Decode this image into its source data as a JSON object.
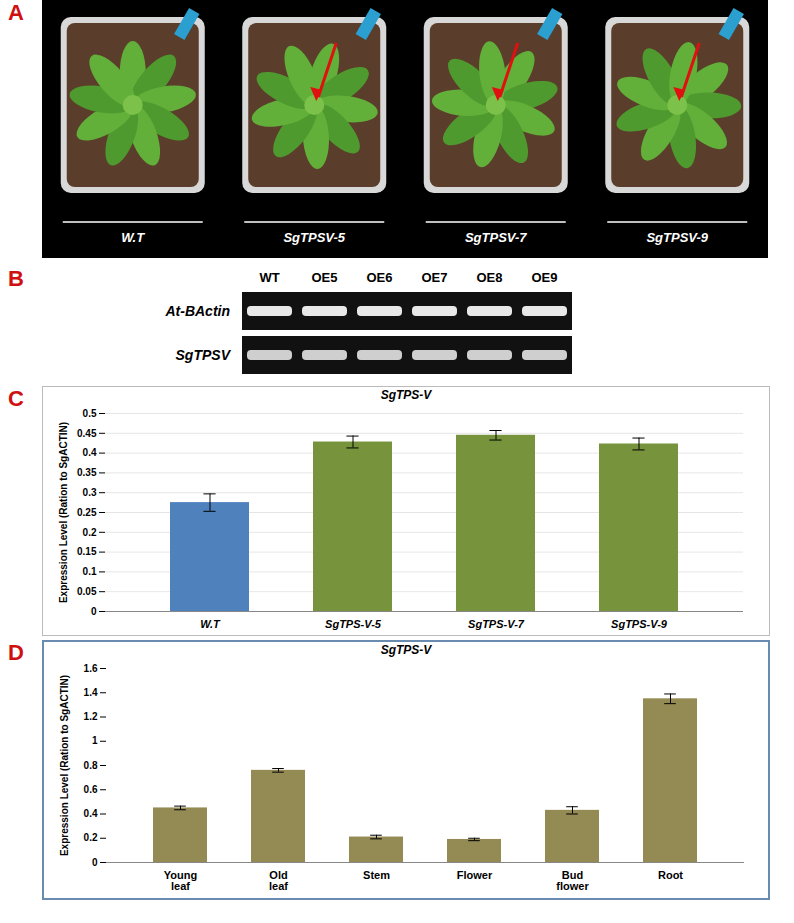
{
  "panels": [
    {
      "letter": "A",
      "type": "photo",
      "labels": [
        "W.T",
        "SgTPSV-5",
        "SgTPSV-7",
        "SgTPSV-9"
      ]
    },
    {
      "letter": "B",
      "type": "gel",
      "columns": [
        "WT",
        "OE5",
        "OE6",
        "OE7",
        "OE8",
        "OE9"
      ],
      "rows": [
        "At-BActin",
        "SgTPSV"
      ]
    }
  ],
  "chart_data": [
    {
      "panel": "C",
      "type": "bar",
      "title": "SgTPS-V",
      "y_label": "Expression Level (Ration to SgACTIN)",
      "categories": [
        "W.T",
        "SgTPS-V-5",
        "SgTPS-V-7",
        "SgTPS-V-9"
      ],
      "values": [
        0.275,
        0.428,
        0.445,
        0.423
      ],
      "errors": [
        0.022,
        0.015,
        0.012,
        0.015
      ],
      "colors": [
        "#4f81bd",
        "#77933c",
        "#77933c",
        "#77933c"
      ],
      "ylim": [
        0,
        0.5
      ],
      "yticks": [
        0,
        0.05,
        0.1,
        0.15,
        0.2,
        0.25,
        0.3,
        0.35,
        0.4,
        0.45,
        0.5
      ],
      "grid": true
    },
    {
      "panel": "D",
      "type": "bar",
      "title": "SgTPS-V",
      "y_label": "Expression Level (Ration to SgACTIN)",
      "categories": [
        "Young leaf",
        "Old leaf",
        "Stem",
        "Flower",
        "Bud flower",
        "Root"
      ],
      "values": [
        0.45,
        0.76,
        0.21,
        0.19,
        0.43,
        1.35
      ],
      "errors": [
        0.015,
        0.015,
        0.015,
        0.01,
        0.03,
        0.04
      ],
      "color": "#948a54",
      "ylim": [
        0,
        1.6
      ],
      "yticks": [
        0,
        0.2,
        0.4,
        0.6,
        0.8,
        1,
        1.2,
        1.4,
        1.6
      ],
      "grid": false
    }
  ]
}
